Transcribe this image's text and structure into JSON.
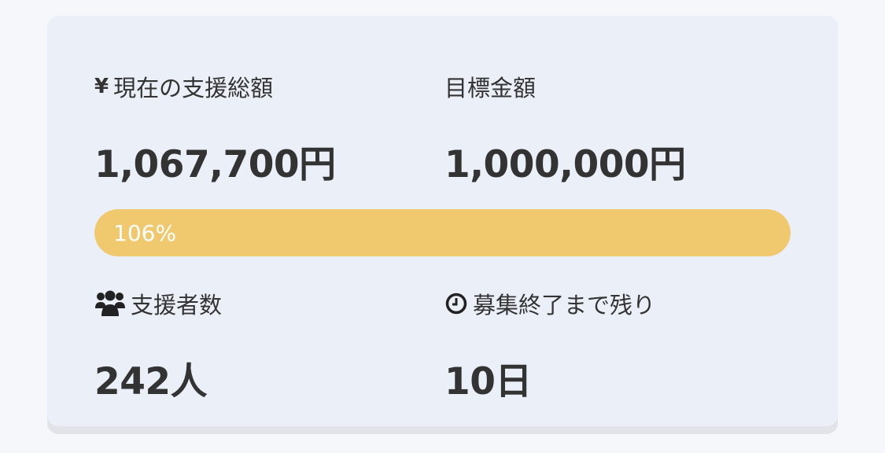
{
  "funding": {
    "current": {
      "icon": "yen-icon",
      "label": "現在の支援総額",
      "value": "1,067,700円"
    },
    "goal": {
      "label": "目標金額",
      "value": "1,000,000円"
    },
    "progress": {
      "percent_label": "106%",
      "percent": 106,
      "color": "#f0c96e"
    },
    "backers": {
      "icon": "users-icon",
      "label": "支援者数",
      "value": "242人"
    },
    "remaining": {
      "icon": "clock-icon",
      "label": "募集終了まで残り",
      "value": "10日"
    }
  }
}
